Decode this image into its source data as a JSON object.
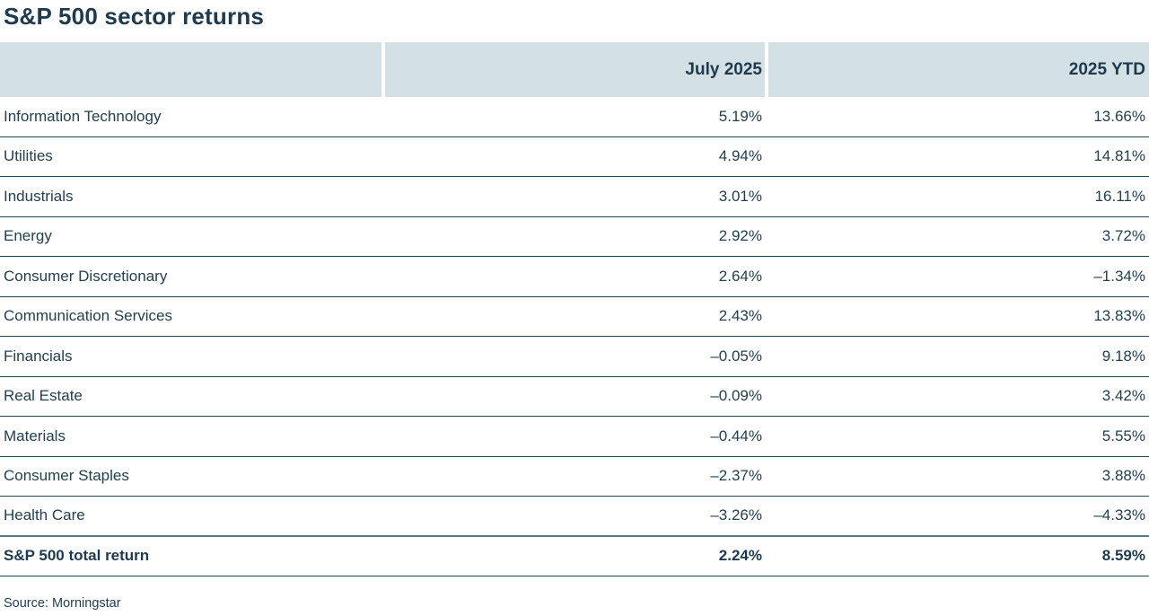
{
  "title": "S&P 500 sector returns",
  "source": "Source: Morningstar",
  "colors": {
    "brand_navy": "#1d3a4e",
    "header_background": "#d3e0e4",
    "row_separator": "#26424f",
    "total_rule": "#5d7585",
    "page_background": "#ffffff"
  },
  "chart_data": {
    "type": "table",
    "title": "S&P 500 sector returns",
    "columns": [
      "",
      "July 2025",
      "2025 YTD"
    ],
    "rows": [
      [
        "Information Technology",
        "5.19%",
        "13.66%"
      ],
      [
        "Utilities",
        "4.94%",
        "14.81%"
      ],
      [
        "Industrials",
        "3.01%",
        "16.11%"
      ],
      [
        "Energy",
        "2.92%",
        "3.72%"
      ],
      [
        "Consumer Discretionary",
        "2.64%",
        "–1.34%"
      ],
      [
        "Communication Services",
        "2.43%",
        "13.83%"
      ],
      [
        "Financials",
        "–0.05%",
        "9.18%"
      ],
      [
        "Real Estate",
        "–0.09%",
        "3.42%"
      ],
      [
        "Materials",
        "–0.44%",
        "5.55%"
      ],
      [
        "Consumer Staples",
        "–2.37%",
        "3.88%"
      ],
      [
        "Health Care",
        "–3.26%",
        "–4.33%"
      ]
    ],
    "total": [
      "S&P 500 total return",
      "2.24%",
      "8.59%"
    ],
    "source": "Source: Morningstar",
    "layout": {
      "legend": "none",
      "grid": "horizontal-rules",
      "value_alignment": "right"
    }
  }
}
